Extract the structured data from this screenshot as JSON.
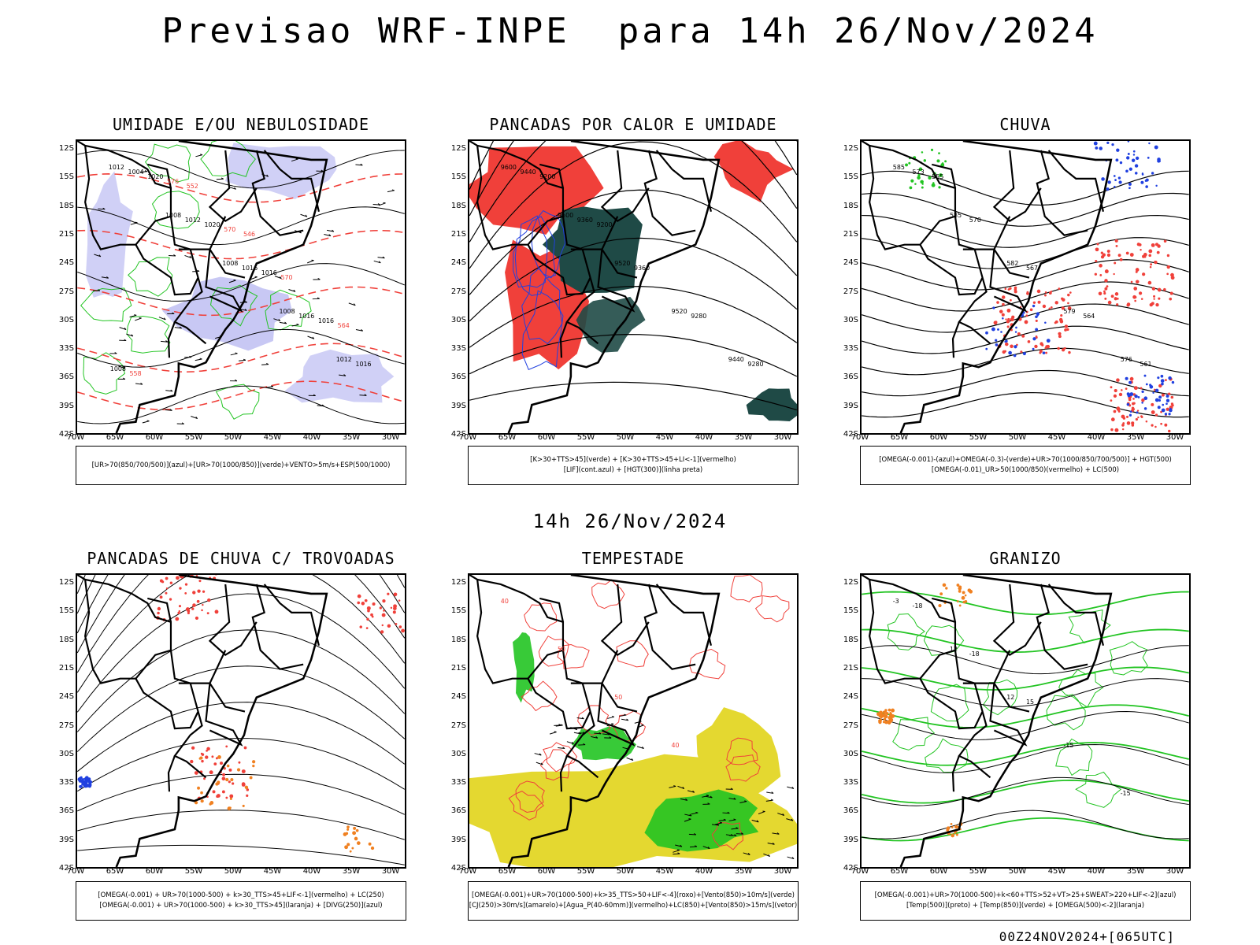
{
  "main_title": "Previsao WRF-INPE  para 14h 26/Nov/2024",
  "middle_title": "14h 26/Nov/2024",
  "footer": "00Z24NOV2024+[065UTC]",
  "lat_labels": [
    "12S",
    "15S",
    "18S",
    "21S",
    "24S",
    "27S",
    "30S",
    "33S",
    "36S",
    "39S",
    "42S"
  ],
  "lon_labels": [
    "70W",
    "65W",
    "60W",
    "55W",
    "50W",
    "45W",
    "40W",
    "35W",
    "30W"
  ],
  "colors": {
    "green": "#22c422",
    "red": "#f0403a",
    "blue": "#2040e0",
    "purple": "#b0b0f0",
    "dark": "#1f4a46",
    "yellow": "#e4d830",
    "orange": "#f08020"
  },
  "chart_data": [
    {
      "type": "map",
      "title": "UMIDADE E/OU NEBULOSIDADE",
      "legend": [
        "[UR>70(850/700/500)](azul)+[UR>70(1000/850)](verde)+VENTO>5m/s+ESP(500/1000)"
      ],
      "xlim": [
        -70,
        -28
      ],
      "ylim": [
        -42,
        -11
      ],
      "contour_labels": [
        "1012",
        "1008",
        "1008",
        "1008",
        "1012",
        "1004",
        "1012",
        "1016",
        "1016",
        "1016",
        "1020",
        "1020",
        "1016",
        "1016",
        "1008",
        "576",
        "570",
        "570",
        "564",
        "558",
        "552",
        "546"
      ]
    },
    {
      "type": "map",
      "title": "PANCADAS POR CALOR E UMIDADE",
      "legend": [
        "[K>30+TTS>45](verde) + [K>30+TTS>45+LI<-1](vermelho)",
        "[LIF](cont.azul) + [HGT(300)](linha preta)"
      ],
      "xlim": [
        -70,
        -28
      ],
      "ylim": [
        -42,
        -11
      ],
      "contour_labels": [
        "9600",
        "9600",
        "9520",
        "9520",
        "9440",
        "9440",
        "9360",
        "9360",
        "9280",
        "9280",
        "9200",
        "9200"
      ]
    },
    {
      "type": "map",
      "title": "CHUVA",
      "legend": [
        "[OMEGA(-0.001)-(azul)+OMEGA(-0.3)-(verde)+UR>70(1000/850/700/500)] + HGT(500)",
        "[OMEGA(-0.01)_UR>50(1000/850)(vermelho) + LC(500)"
      ],
      "xlim": [
        -70,
        -28
      ],
      "ylim": [
        -42,
        -11
      ],
      "contour_labels": [
        "585",
        "585",
        "582",
        "579",
        "576",
        "573",
        "570",
        "567",
        "564",
        "561",
        "555"
      ]
    },
    {
      "type": "map",
      "title": "PANCADAS DE CHUVA C/ TROVOADAS",
      "legend": [
        "[OMEGA(-0.001) + UR>70(1000-500) + k>30_TTS>45+LIF<-1](vermelho) + LC(250)",
        "[OMEGA(-0.001) + UR>70(1000-500) + k>30_TTS>45](laranja) + [DIVG(250)](azul)"
      ],
      "xlim": [
        -70,
        -28
      ],
      "ylim": [
        -42,
        -11
      ],
      "contour_labels": []
    },
    {
      "type": "map",
      "title": "TEMPESTADE",
      "legend": [
        "[OMEGA(-0.001)+UR>70(1000-500)+k>35_TTS>50+LIF<-4](roxo)+[Vento(850)>10m/s](verde)",
        "[CJ(250)>30m/s](amarelo)+[Agua_P(40-60mm)](vermelho)+LC(850)+[Vento(850)>15m/s](vetor)"
      ],
      "xlim": [
        -70,
        -28
      ],
      "ylim": [
        -42,
        -11
      ],
      "contour_labels": [
        "40",
        "50",
        "50",
        "40"
      ]
    },
    {
      "type": "map",
      "title": "GRANIZO",
      "legend": [
        "[OMEGA(-0.001)+UR>70(1000-500)+k<60+TTS>52+VT>25+SWEAT>220+LIF<-2](azul)",
        "[Temp(500)](preto) + [Temp(850)](verde) + [OMEGA(500)<-2](laranja)"
      ],
      "xlim": [
        -70,
        -28
      ],
      "ylim": [
        -42,
        -11
      ],
      "contour_labels": [
        "-3",
        "12",
        "12",
        "-15",
        "-15",
        "-18",
        "-18",
        "15"
      ]
    }
  ]
}
